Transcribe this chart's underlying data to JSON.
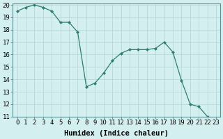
{
  "x": [
    0,
    1,
    2,
    3,
    4,
    5,
    6,
    7,
    8,
    9,
    10,
    11,
    12,
    13,
    14,
    15,
    16,
    17,
    18,
    19,
    20,
    21,
    22,
    23
  ],
  "y": [
    19.5,
    19.8,
    20.0,
    19.8,
    19.5,
    18.6,
    18.6,
    17.8,
    13.4,
    13.7,
    14.5,
    15.5,
    16.1,
    16.4,
    16.4,
    16.4,
    16.5,
    17.0,
    16.2,
    13.9,
    12.0,
    11.8,
    11.0,
    10.8
  ],
  "xlabel": "Humidex (Indice chaleur)",
  "ylim": [
    11,
    20
  ],
  "xlim": [
    -0.5,
    23.5
  ],
  "yticks": [
    11,
    12,
    13,
    14,
    15,
    16,
    17,
    18,
    19,
    20
  ],
  "xticks": [
    0,
    1,
    2,
    3,
    4,
    5,
    6,
    7,
    8,
    9,
    10,
    11,
    12,
    13,
    14,
    15,
    16,
    17,
    18,
    19,
    20,
    21,
    22,
    23
  ],
  "line_color": "#2e7d6e",
  "marker": "D",
  "marker_size": 2.0,
  "bg_color": "#d4efef",
  "grid_color": "#b8d8d8",
  "tick_fontsize": 6.5,
  "xlabel_fontsize": 7.5,
  "xlabel_fontweight": "bold"
}
